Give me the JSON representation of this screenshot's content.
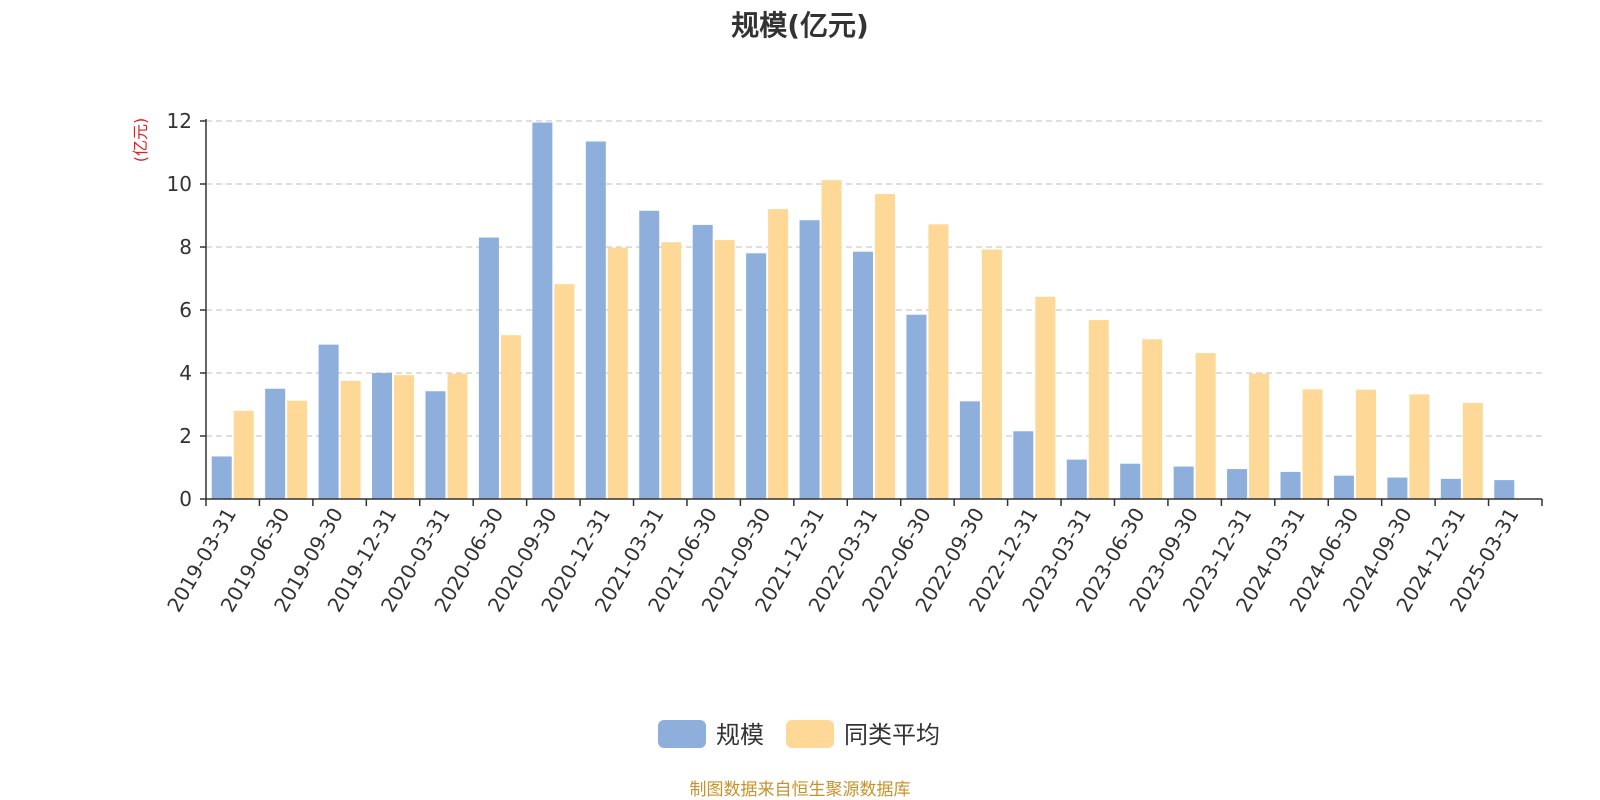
{
  "chart_data": {
    "type": "bar",
    "title": "规模(亿元)",
    "ylabel": "(亿元)",
    "xlabel": "",
    "ylim": [
      0,
      12
    ],
    "yticks": [
      0,
      2,
      4,
      6,
      8,
      10,
      12
    ],
    "grid": true,
    "legend_position": "bottom-center",
    "categories": [
      "2019-03-31",
      "2019-06-30",
      "2019-09-30",
      "2019-12-31",
      "2020-03-31",
      "2020-06-30",
      "2020-09-30",
      "2020-12-31",
      "2021-03-31",
      "2021-06-30",
      "2021-09-30",
      "2021-12-31",
      "2022-03-31",
      "2022-06-30",
      "2022-09-30",
      "2022-12-31",
      "2023-03-31",
      "2023-06-30",
      "2023-09-30",
      "2023-12-31",
      "2024-03-31",
      "2024-06-30",
      "2024-09-30",
      "2024-12-31",
      "2025-03-31"
    ],
    "series": [
      {
        "name": "规模",
        "color": "#8eaedb",
        "values": [
          1.35,
          3.5,
          4.9,
          4.0,
          3.42,
          8.3,
          11.95,
          11.35,
          9.15,
          8.7,
          7.8,
          8.85,
          7.85,
          5.85,
          3.1,
          2.15,
          1.25,
          1.12,
          1.03,
          0.95,
          0.86,
          0.74,
          0.68,
          0.64,
          0.6
        ]
      },
      {
        "name": "同类平均",
        "color": "#fdd897",
        "values": [
          2.8,
          3.12,
          3.75,
          3.93,
          3.98,
          5.2,
          6.82,
          7.98,
          8.15,
          8.22,
          9.2,
          10.12,
          9.68,
          8.72,
          7.92,
          6.42,
          5.68,
          5.07,
          4.63,
          3.98,
          3.48,
          3.47,
          3.32,
          3.05,
          null
        ]
      }
    ]
  },
  "source": "制图数据来自恒生聚源数据库",
  "colors": {
    "axis": "#333333",
    "grid": "#cccccc",
    "ylabel": "#e02020",
    "source": "#c8922b"
  }
}
